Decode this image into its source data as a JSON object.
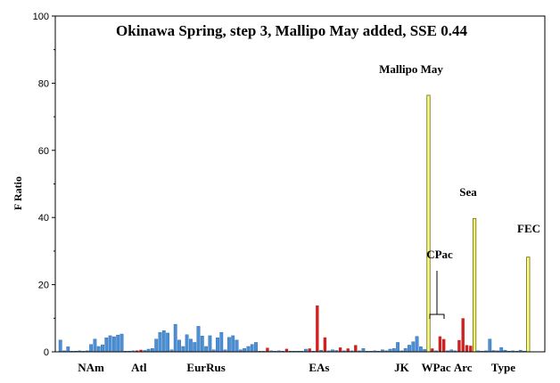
{
  "chart_data": {
    "type": "bar",
    "title": "Okinawa Spring, step 3, Mallipo May added, SSE 0.44",
    "ylabel": "F Ratio",
    "xlabel": "",
    "ylim": [
      0,
      100
    ],
    "yticks": [
      0,
      20,
      40,
      60,
      80,
      100
    ],
    "grid": false,
    "colors": {
      "blue": "#4a90d9",
      "red": "#cc2222",
      "yellow": "#ffff88",
      "yellow_edge": "#666600"
    },
    "groups": [
      {
        "label": "NAm",
        "start": 0,
        "end": 16
      },
      {
        "label": "Atl",
        "start": 17,
        "end": 24
      },
      {
        "label": "EurRus",
        "start": 25,
        "end": 51
      },
      {
        "label": "EAs",
        "start": 52,
        "end": 83
      },
      {
        "label": "JK",
        "start": 84,
        "end": 94
      },
      {
        "label": "WPac",
        "start": 95,
        "end": 101
      },
      {
        "label": "Arc",
        "start": 102,
        "end": 108
      },
      {
        "label": "Type",
        "start": 109,
        "end": 122
      }
    ],
    "annotations": [
      {
        "text": "Mallipo May",
        "index": 96
      },
      {
        "text": "Sea",
        "index": 108
      },
      {
        "text": "CPac",
        "index": 103
      },
      {
        "text": "FEC",
        "index": 122
      }
    ],
    "bars": [
      {
        "v": 3.5,
        "c": "b"
      },
      {
        "v": 0.3,
        "c": "b"
      },
      {
        "v": 1.5,
        "c": "b"
      },
      {
        "v": 0.2,
        "c": "b"
      },
      {
        "v": 0.1,
        "c": "b"
      },
      {
        "v": 0.3,
        "c": "b"
      },
      {
        "v": 0.1,
        "c": "b"
      },
      {
        "v": 0.3,
        "c": "b"
      },
      {
        "v": 2.2,
        "c": "b"
      },
      {
        "v": 3.8,
        "c": "b"
      },
      {
        "v": 1.6,
        "c": "b"
      },
      {
        "v": 2.1,
        "c": "b"
      },
      {
        "v": 4.2,
        "c": "b"
      },
      {
        "v": 4.8,
        "c": "b"
      },
      {
        "v": 4.5,
        "c": "b"
      },
      {
        "v": 5.0,
        "c": "b"
      },
      {
        "v": 5.3,
        "c": "b"
      },
      {
        "v": 0.2,
        "c": "b"
      },
      {
        "v": 0.1,
        "c": "b"
      },
      {
        "v": 0.3,
        "c": "b"
      },
      {
        "v": 0.4,
        "c": "r"
      },
      {
        "v": 0.6,
        "c": "r"
      },
      {
        "v": 0.4,
        "c": "b"
      },
      {
        "v": 0.8,
        "c": "b"
      },
      {
        "v": 1.0,
        "c": "b"
      },
      {
        "v": 3.8,
        "c": "b"
      },
      {
        "v": 5.8,
        "c": "b"
      },
      {
        "v": 6.3,
        "c": "b"
      },
      {
        "v": 5.6,
        "c": "b"
      },
      {
        "v": 0.6,
        "c": "b"
      },
      {
        "v": 8.2,
        "c": "b"
      },
      {
        "v": 3.5,
        "c": "b"
      },
      {
        "v": 1.6,
        "c": "b"
      },
      {
        "v": 5.1,
        "c": "b"
      },
      {
        "v": 3.8,
        "c": "b"
      },
      {
        "v": 2.8,
        "c": "b"
      },
      {
        "v": 7.6,
        "c": "b"
      },
      {
        "v": 4.7,
        "c": "b"
      },
      {
        "v": 1.6,
        "c": "b"
      },
      {
        "v": 4.8,
        "c": "b"
      },
      {
        "v": 0.6,
        "c": "b"
      },
      {
        "v": 4.2,
        "c": "b"
      },
      {
        "v": 5.8,
        "c": "b"
      },
      {
        "v": 0.6,
        "c": "b"
      },
      {
        "v": 4.3,
        "c": "b"
      },
      {
        "v": 4.8,
        "c": "b"
      },
      {
        "v": 3.5,
        "c": "b"
      },
      {
        "v": 0.6,
        "c": "b"
      },
      {
        "v": 1.0,
        "c": "b"
      },
      {
        "v": 1.6,
        "c": "b"
      },
      {
        "v": 2.2,
        "c": "b"
      },
      {
        "v": 2.8,
        "c": "b"
      },
      {
        "v": 0.2,
        "c": "b"
      },
      {
        "v": 0.1,
        "c": "b"
      },
      {
        "v": 1.2,
        "c": "r"
      },
      {
        "v": 0.3,
        "c": "b"
      },
      {
        "v": 0.2,
        "c": "b"
      },
      {
        "v": 0.3,
        "c": "b"
      },
      {
        "v": 0.1,
        "c": "b"
      },
      {
        "v": 0.9,
        "c": "r"
      },
      {
        "v": 0.2,
        "c": "b"
      },
      {
        "v": 0.1,
        "c": "b"
      },
      {
        "v": 0.1,
        "c": "b"
      },
      {
        "v": 0.2,
        "c": "b"
      },
      {
        "v": 0.8,
        "c": "b"
      },
      {
        "v": 1.0,
        "c": "r"
      },
      {
        "v": 0.2,
        "c": "b"
      },
      {
        "v": 13.8,
        "c": "r"
      },
      {
        "v": 0.5,
        "c": "b"
      },
      {
        "v": 4.3,
        "c": "r"
      },
      {
        "v": 0.3,
        "c": "b"
      },
      {
        "v": 0.6,
        "c": "b"
      },
      {
        "v": 0.4,
        "c": "b"
      },
      {
        "v": 1.3,
        "c": "r"
      },
      {
        "v": 0.3,
        "c": "b"
      },
      {
        "v": 1.0,
        "c": "r"
      },
      {
        "v": 0.3,
        "c": "b"
      },
      {
        "v": 2.0,
        "c": "r"
      },
      {
        "v": 0.3,
        "c": "b"
      },
      {
        "v": 1.0,
        "c": "b"
      },
      {
        "v": 0.2,
        "c": "b"
      },
      {
        "v": 0.1,
        "c": "b"
      },
      {
        "v": 0.3,
        "c": "b"
      },
      {
        "v": 0.2,
        "c": "b"
      },
      {
        "v": 0.6,
        "c": "b"
      },
      {
        "v": 0.3,
        "c": "b"
      },
      {
        "v": 0.8,
        "c": "b"
      },
      {
        "v": 1.0,
        "c": "b"
      },
      {
        "v": 2.8,
        "c": "b"
      },
      {
        "v": 0.3,
        "c": "b"
      },
      {
        "v": 1.0,
        "c": "b"
      },
      {
        "v": 2.0,
        "c": "b"
      },
      {
        "v": 3.0,
        "c": "b"
      },
      {
        "v": 4.6,
        "c": "b"
      },
      {
        "v": 1.5,
        "c": "b"
      },
      {
        "v": 0.7,
        "c": "b"
      },
      {
        "v": 76.4,
        "c": "y"
      },
      {
        "v": 1.0,
        "c": "r"
      },
      {
        "v": 0.3,
        "c": "b"
      },
      {
        "v": 4.6,
        "c": "r"
      },
      {
        "v": 3.8,
        "c": "r"
      },
      {
        "v": 0.3,
        "c": "b"
      },
      {
        "v": 0.6,
        "c": "b"
      },
      {
        "v": 0.3,
        "c": "b"
      },
      {
        "v": 3.5,
        "c": "r"
      },
      {
        "v": 10.0,
        "c": "r"
      },
      {
        "v": 2.0,
        "c": "r"
      },
      {
        "v": 1.8,
        "c": "r"
      },
      {
        "v": 39.7,
        "c": "y"
      },
      {
        "v": 0.3,
        "c": "b"
      },
      {
        "v": 0.2,
        "c": "b"
      },
      {
        "v": 0.3,
        "c": "b"
      },
      {
        "v": 3.8,
        "c": "b"
      },
      {
        "v": 0.4,
        "c": "b"
      },
      {
        "v": 0.3,
        "c": "b"
      },
      {
        "v": 1.3,
        "c": "b"
      },
      {
        "v": 0.5,
        "c": "b"
      },
      {
        "v": 0.2,
        "c": "b"
      },
      {
        "v": 0.3,
        "c": "b"
      },
      {
        "v": 0.2,
        "c": "b"
      },
      {
        "v": 0.5,
        "c": "b"
      },
      {
        "v": 0.2,
        "c": "b"
      },
      {
        "v": 28.2,
        "c": "y"
      }
    ]
  }
}
